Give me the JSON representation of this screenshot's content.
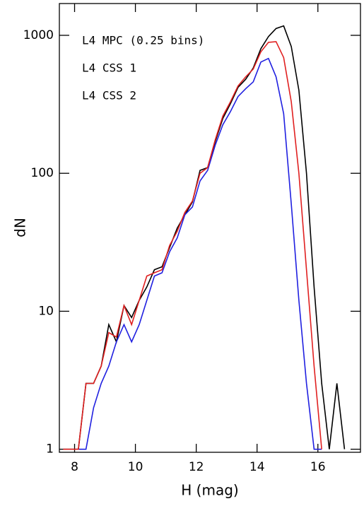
{
  "chart_data": {
    "type": "line",
    "x_label": "H (mag)",
    "y_label": "dN",
    "x": [
      7.625,
      7.875,
      8.125,
      8.375,
      8.625,
      8.875,
      9.125,
      9.375,
      9.625,
      9.875,
      10.125,
      10.375,
      10.625,
      10.875,
      11.125,
      11.375,
      11.625,
      11.875,
      12.125,
      12.375,
      12.625,
      12.875,
      13.125,
      13.375,
      13.625,
      13.875,
      14.125,
      14.375,
      14.625,
      14.875,
      15.125,
      15.375,
      15.625,
      15.875,
      16.125,
      16.375,
      16.625,
      16.875
    ],
    "series": [
      {
        "name": "L4 MPC (0.25 bins)",
        "color": "#000000",
        "values": [
          1,
          1,
          1,
          3,
          3,
          4,
          8,
          6,
          11,
          9,
          12,
          15,
          20,
          21,
          29,
          40,
          50,
          62,
          105,
          110,
          170,
          250,
          320,
          420,
          480,
          580,
          800,
          980,
          1120,
          1170,
          830,
          400,
          100,
          15,
          3,
          1,
          3,
          1
        ]
      },
      {
        "name": "L4 CSS 1",
        "color": "#2020e0",
        "values": [
          null,
          null,
          1,
          1,
          2,
          3,
          4,
          6,
          8,
          6,
          8,
          12,
          18,
          19,
          27,
          34,
          50,
          57,
          88,
          105,
          160,
          225,
          280,
          360,
          410,
          460,
          640,
          680,
          500,
          270,
          60,
          12,
          3,
          1,
          1,
          null,
          null,
          null
        ]
      },
      {
        "name": "L4 CSS 2",
        "color": "#e02020",
        "values": [
          1,
          1,
          1,
          3,
          3,
          4,
          7,
          6.5,
          11,
          8,
          12,
          18,
          19,
          20,
          30,
          38,
          52,
          63,
          100,
          110,
          175,
          260,
          330,
          430,
          500,
          570,
          760,
          890,
          900,
          690,
          330,
          100,
          20,
          4,
          1,
          null,
          null,
          null
        ]
      }
    ],
    "xlim": [
      7.5,
      17.4
    ],
    "xticks": [
      8,
      10,
      12,
      14,
      16
    ],
    "ylim": [
      0.95,
      1700
    ],
    "yticks": [
      1,
      10,
      100,
      1000
    ],
    "yscale": "log",
    "legend": "upper left"
  }
}
